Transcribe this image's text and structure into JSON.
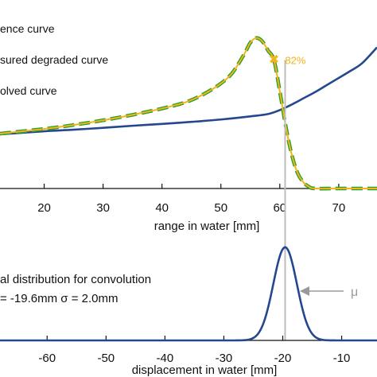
{
  "chart_data": [
    {
      "type": "line",
      "xlabel": "range in water [mm]",
      "x_ticks": [
        20,
        30,
        40,
        50,
        60,
        70
      ],
      "xlim": [
        12.5,
        76.5
      ],
      "ylim": [
        0,
        1.05
      ],
      "legend_position": "top-left",
      "legend": [
        "ence curve",
        "sured degraded curve",
        "olved curve"
      ],
      "annotation": {
        "label": "82%",
        "x": 59.0,
        "y": 0.82
      },
      "series": [
        {
          "name": "ence curve",
          "color": "#24478f",
          "x": [
            12.5,
            20,
            25,
            30,
            35,
            40,
            45,
            50,
            55,
            58,
            60,
            62,
            64,
            66,
            68,
            70,
            72,
            74,
            76.5
          ],
          "y": [
            0.345,
            0.365,
            0.375,
            0.387,
            0.4,
            0.412,
            0.425,
            0.44,
            0.46,
            0.475,
            0.5,
            0.535,
            0.575,
            0.615,
            0.66,
            0.705,
            0.75,
            0.8,
            0.9
          ]
        },
        {
          "name": "sured degraded curve",
          "color": "#2ca02c",
          "x": [
            12.5,
            20,
            25,
            30,
            35,
            40,
            44,
            47,
            50,
            52,
            54,
            55,
            56,
            57,
            58,
            59,
            60,
            61,
            62,
            63,
            64,
            65,
            66,
            70,
            76.5
          ],
          "y": [
            0.35,
            0.38,
            0.405,
            0.435,
            0.47,
            0.51,
            0.55,
            0.6,
            0.67,
            0.74,
            0.86,
            0.93,
            0.96,
            0.94,
            0.88,
            0.82,
            0.62,
            0.4,
            0.22,
            0.1,
            0.04,
            0.01,
            0.0,
            0.0,
            0.0
          ]
        },
        {
          "name": "olved curve",
          "color": "#f2b31c",
          "x": [
            12.5,
            20,
            25,
            30,
            35,
            40,
            44,
            47,
            50,
            52,
            54,
            55,
            56,
            57,
            58,
            59,
            60,
            61,
            62,
            63,
            64,
            65,
            66,
            70,
            76.5
          ],
          "y": [
            0.35,
            0.38,
            0.405,
            0.435,
            0.47,
            0.51,
            0.55,
            0.6,
            0.67,
            0.74,
            0.86,
            0.93,
            0.96,
            0.94,
            0.88,
            0.82,
            0.62,
            0.4,
            0.22,
            0.1,
            0.04,
            0.01,
            0.0,
            0.0,
            0.0
          ]
        }
      ]
    },
    {
      "type": "line",
      "xlabel": "displacement in water [mm]",
      "x_ticks": [
        -60,
        -50,
        -40,
        -30,
        -20,
        -10
      ],
      "xlim": [
        -68.0,
        -4.0
      ],
      "ylim": [
        0,
        1.05
      ],
      "text_lines": [
        "al distribution for convolution",
        "= -19.6mm σ = 2.0mm"
      ],
      "mu_label": "μ",
      "gaussian": {
        "mu": -19.6,
        "sigma": 2.0,
        "color": "#24478f"
      }
    }
  ]
}
